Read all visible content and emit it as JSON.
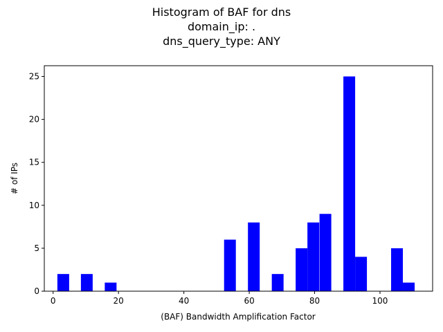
{
  "chart_data": {
    "type": "bar",
    "title_lines": [
      "Histogram of BAF for dns",
      "domain_ip: .",
      "dns_query_type: ANY"
    ],
    "xlabel": "(BAF) Bandwidth Amplification Factor",
    "ylabel": "# of IPs",
    "xlim": [
      -2.7,
      116.1
    ],
    "ylim": [
      0,
      26.25
    ],
    "xticks": [
      0,
      20,
      40,
      60,
      80,
      100
    ],
    "yticks": [
      0,
      5,
      10,
      15,
      20,
      25
    ],
    "bin_width": 3.6,
    "bar_color": "#0000ff",
    "grid": false,
    "bins": [
      {
        "start": 1.3,
        "count": 2
      },
      {
        "start": 8.5,
        "count": 2
      },
      {
        "start": 15.8,
        "count": 1
      },
      {
        "start": 52.3,
        "count": 6
      },
      {
        "start": 59.6,
        "count": 8
      },
      {
        "start": 66.9,
        "count": 2
      },
      {
        "start": 74.2,
        "count": 5
      },
      {
        "start": 77.8,
        "count": 8
      },
      {
        "start": 81.5,
        "count": 9
      },
      {
        "start": 88.8,
        "count": 25
      },
      {
        "start": 92.4,
        "count": 4
      },
      {
        "start": 103.4,
        "count": 5
      },
      {
        "start": 107.0,
        "count": 1
      }
    ]
  }
}
